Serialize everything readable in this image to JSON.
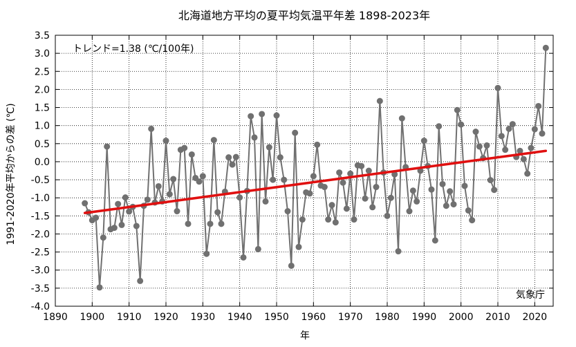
{
  "chart_data": {
    "type": "line",
    "title": "北海道地方平均の夏平均気温平年差 1898-2023年",
    "xlabel": "年",
    "ylabel": "1991-2020年平均からの差 (℃)",
    "annotation": "トレンド=1.38 (℃/100年)",
    "credit": "気象庁",
    "xlim": [
      1890,
      2025
    ],
    "ylim": [
      -4.0,
      3.5
    ],
    "grid": true,
    "x_ticks": [
      1890,
      1900,
      1910,
      1920,
      1930,
      1940,
      1950,
      1960,
      1970,
      1980,
      1990,
      2000,
      2010,
      2020
    ],
    "y_ticks": [
      3.5,
      3.0,
      2.5,
      2.0,
      1.5,
      1.0,
      0.5,
      0.0,
      -0.5,
      -1.0,
      -1.5,
      -2.0,
      -2.5,
      -3.0,
      -3.5,
      -4.0
    ],
    "y_tick_labels": [
      "3.5",
      "3.0",
      "2.5",
      "2.0",
      "1.5",
      "1.0",
      "0.5",
      "0.0",
      "-0.5",
      "-1.0",
      "-1.5",
      "-2.0",
      "-2.5",
      "-3.0",
      "-3.5",
      "-4.0"
    ],
    "series": [
      {
        "color": "#707070",
        "x": [
          1898,
          1899,
          1900,
          1901,
          1902,
          1903,
          1904,
          1905,
          1906,
          1907,
          1908,
          1909,
          1910,
          1911,
          1912,
          1913,
          1914,
          1915,
          1916,
          1917,
          1918,
          1919,
          1920,
          1921,
          1922,
          1923,
          1924,
          1925,
          1926,
          1927,
          1928,
          1929,
          1930,
          1931,
          1932,
          1933,
          1934,
          1935,
          1936,
          1937,
          1938,
          1939,
          1940,
          1941,
          1942,
          1943,
          1944,
          1945,
          1946,
          1947,
          1948,
          1949,
          1950,
          1951,
          1952,
          1953,
          1954,
          1955,
          1956,
          1957,
          1958,
          1959,
          1960,
          1961,
          1962,
          1963,
          1964,
          1965,
          1966,
          1967,
          1968,
          1969,
          1970,
          1971,
          1972,
          1973,
          1974,
          1975,
          1976,
          1977,
          1978,
          1979,
          1980,
          1981,
          1982,
          1983,
          1984,
          1985,
          1986,
          1987,
          1988,
          1989,
          1990,
          1991,
          1992,
          1993,
          1994,
          1995,
          1996,
          1997,
          1998,
          1999,
          2000,
          2001,
          2002,
          2003,
          2004,
          2005,
          2006,
          2007,
          2008,
          2009,
          2010,
          2011,
          2012,
          2013,
          2014,
          2015,
          2016,
          2017,
          2018,
          2019,
          2020,
          2021,
          2022,
          2023
        ],
        "values": [
          -1.15,
          -1.4,
          -1.62,
          -1.55,
          -3.48,
          -2.1,
          0.42,
          -1.87,
          -1.83,
          -1.17,
          -1.75,
          -0.99,
          -1.38,
          -1.25,
          -1.78,
          -3.3,
          -1.22,
          -1.05,
          0.91,
          -1.13,
          -0.68,
          -1.1,
          0.58,
          -0.9,
          -0.48,
          -1.37,
          0.33,
          0.38,
          -1.72,
          0.2,
          -0.45,
          -0.55,
          -0.4,
          -2.55,
          -1.72,
          0.6,
          -1.4,
          -1.72,
          -0.83,
          0.12,
          -0.08,
          0.13,
          -0.99,
          -2.65,
          -0.81,
          1.26,
          0.67,
          -2.42,
          1.32,
          -1.1,
          0.4,
          -0.5,
          1.28,
          0.12,
          -0.5,
          -1.37,
          -2.88,
          0.8,
          -2.36,
          -1.6,
          -0.85,
          -0.88,
          -0.4,
          0.47,
          -0.66,
          -0.7,
          -1.6,
          -1.2,
          -1.68,
          -0.3,
          -0.58,
          -1.3,
          -0.33,
          -1.6,
          -0.1,
          -0.12,
          -1.02,
          -0.25,
          -1.26,
          -0.7,
          1.68,
          -0.3,
          -1.5,
          -1.0,
          -0.35,
          -2.48,
          1.2,
          -0.15,
          -1.37,
          -0.8,
          -1.1,
          -0.25,
          0.58,
          -0.12,
          -0.77,
          -2.18,
          0.98,
          -0.62,
          -1.22,
          -0.82,
          -1.18,
          1.43,
          1.03,
          -0.67,
          -1.35,
          -1.62,
          0.83,
          0.42,
          0.1,
          0.45,
          -0.51,
          -0.78,
          2.04,
          0.71,
          0.33,
          0.91,
          1.04,
          0.13,
          0.3,
          0.07,
          -0.33,
          0.38,
          0.9,
          1.54,
          0.78,
          3.15
        ]
      }
    ],
    "trend": {
      "color": "#e01010",
      "x": [
        1898,
        2023
      ],
      "values": [
        -1.42,
        0.3
      ]
    }
  }
}
